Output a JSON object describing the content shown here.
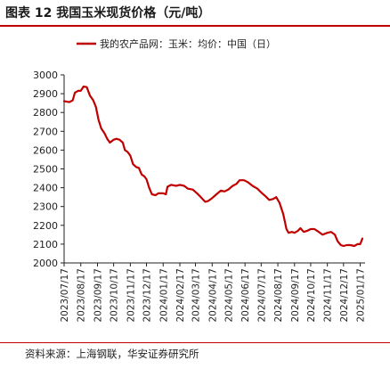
{
  "figure": {
    "title": "图表 12  我国玉米现货价格（元/吨）",
    "source": "资料来源：上海钢联，华安证券研究所"
  },
  "chart_data": {
    "type": "line",
    "legend_position": "top",
    "grid": false,
    "x_tick_labels": [
      "2023/07/17",
      "2023/08/17",
      "2023/09/17",
      "2023/10/17",
      "2023/11/17",
      "2023/12/17",
      "2024/01/17",
      "2024/02/17",
      "2024/03/17",
      "2024/04/17",
      "2024/05/17",
      "2024/06/17",
      "2024/07/17",
      "2024/08/17",
      "2024/09/17",
      "2024/10/17",
      "2024/11/17",
      "2024/12/17",
      "2025/01/17"
    ],
    "y_ticks": [
      2000,
      2100,
      2200,
      2300,
      2400,
      2500,
      2600,
      2700,
      2800,
      2900,
      3000
    ],
    "ylim": [
      2000,
      3000
    ],
    "xlim": [
      "2023/07/17",
      "2025/01/26"
    ],
    "series": [
      {
        "name": "我的农产品网：玉米：均价：中国（日）",
        "color": "#c00000",
        "points": [
          [
            "2023/07/17",
            2860
          ],
          [
            "2023/07/27",
            2855
          ],
          [
            "2023/08/02",
            2865
          ],
          [
            "2023/08/06",
            2905
          ],
          [
            "2023/08/12",
            2915
          ],
          [
            "2023/08/17",
            2915
          ],
          [
            "2023/08/22",
            2938
          ],
          [
            "2023/08/28",
            2935
          ],
          [
            "2023/09/03",
            2890
          ],
          [
            "2023/09/09",
            2865
          ],
          [
            "2023/09/14",
            2830
          ],
          [
            "2023/09/19",
            2760
          ],
          [
            "2023/09/24",
            2715
          ],
          [
            "2023/09/30",
            2690
          ],
          [
            "2023/10/05",
            2660
          ],
          [
            "2023/10/10",
            2640
          ],
          [
            "2023/10/17",
            2655
          ],
          [
            "2023/10/22",
            2660
          ],
          [
            "2023/10/28",
            2655
          ],
          [
            "2023/11/03",
            2640
          ],
          [
            "2023/11/07",
            2600
          ],
          [
            "2023/11/12",
            2590
          ],
          [
            "2023/11/17",
            2570
          ],
          [
            "2023/11/22",
            2525
          ],
          [
            "2023/11/28",
            2510
          ],
          [
            "2023/12/03",
            2505
          ],
          [
            "2023/12/08",
            2470
          ],
          [
            "2023/12/13",
            2460
          ],
          [
            "2023/12/17",
            2445
          ],
          [
            "2023/12/22",
            2400
          ],
          [
            "2023/12/27",
            2365
          ],
          [
            "2024/01/03",
            2360
          ],
          [
            "2024/01/08",
            2370
          ],
          [
            "2024/01/17",
            2370
          ],
          [
            "2024/01/22",
            2365
          ],
          [
            "2024/01/25",
            2405
          ],
          [
            "2024/02/01",
            2415
          ],
          [
            "2024/02/10",
            2410
          ],
          [
            "2024/02/17",
            2415
          ],
          [
            "2024/02/25",
            2410
          ],
          [
            "2024/03/03",
            2395
          ],
          [
            "2024/03/12",
            2390
          ],
          [
            "2024/03/20",
            2370
          ],
          [
            "2024/03/27",
            2350
          ],
          [
            "2024/04/04",
            2325
          ],
          [
            "2024/04/10",
            2330
          ],
          [
            "2024/04/17",
            2345
          ],
          [
            "2024/04/25",
            2365
          ],
          [
            "2024/05/03",
            2385
          ],
          [
            "2024/05/10",
            2380
          ],
          [
            "2024/05/17",
            2390
          ],
          [
            "2024/05/25",
            2410
          ],
          [
            "2024/06/01",
            2420
          ],
          [
            "2024/06/07",
            2440
          ],
          [
            "2024/06/15",
            2440
          ],
          [
            "2024/06/22",
            2430
          ],
          [
            "2024/07/01",
            2410
          ],
          [
            "2024/07/10",
            2395
          ],
          [
            "2024/07/17",
            2375
          ],
          [
            "2024/07/25",
            2355
          ],
          [
            "2024/08/01",
            2335
          ],
          [
            "2024/08/08",
            2340
          ],
          [
            "2024/08/14",
            2350
          ],
          [
            "2024/08/20",
            2320
          ],
          [
            "2024/08/27",
            2260
          ],
          [
            "2024/09/02",
            2180
          ],
          [
            "2024/09/06",
            2160
          ],
          [
            "2024/09/12",
            2165
          ],
          [
            "2024/09/17",
            2160
          ],
          [
            "2024/09/23",
            2170
          ],
          [
            "2024/09/28",
            2185
          ],
          [
            "2024/10/04",
            2165
          ],
          [
            "2024/10/10",
            2170
          ],
          [
            "2024/10/17",
            2180
          ],
          [
            "2024/10/24",
            2180
          ],
          [
            "2024/11/01",
            2165
          ],
          [
            "2024/11/08",
            2150
          ],
          [
            "2024/11/17",
            2160
          ],
          [
            "2024/11/24",
            2165
          ],
          [
            "2024/12/01",
            2150
          ],
          [
            "2024/12/06",
            2115
          ],
          [
            "2024/12/12",
            2095
          ],
          [
            "2024/12/17",
            2090
          ],
          [
            "2024/12/23",
            2095
          ],
          [
            "2024/12/30",
            2095
          ],
          [
            "2025/01/06",
            2090
          ],
          [
            "2025/01/12",
            2100
          ],
          [
            "2025/01/17",
            2100
          ],
          [
            "2025/01/21",
            2130
          ]
        ]
      }
    ]
  }
}
